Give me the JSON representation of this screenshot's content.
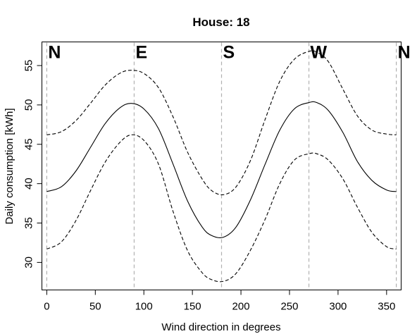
{
  "chart_data": {
    "type": "line",
    "title": "House:  18",
    "xlabel": "Wind direction in degrees",
    "ylabel": "Daily consumption [kWh]",
    "xlim": [
      -5,
      365
    ],
    "ylim": [
      26.5,
      58
    ],
    "xticks": [
      0,
      50,
      100,
      150,
      200,
      250,
      300,
      350
    ],
    "yticks": [
      30,
      35,
      40,
      45,
      50,
      55
    ],
    "grid": false,
    "vlines": [
      0,
      90,
      180,
      270,
      360
    ],
    "direction_labels": [
      {
        "label": "N",
        "x": 0
      },
      {
        "label": "E",
        "x": 90
      },
      {
        "label": "S",
        "x": 180
      },
      {
        "label": "W",
        "x": 270
      },
      {
        "label": "N",
        "x": 360
      }
    ],
    "x": [
      0,
      15,
      30,
      45,
      60,
      75,
      87,
      100,
      115,
      130,
      145,
      160,
      170,
      182,
      195,
      210,
      225,
      240,
      255,
      270,
      278,
      290,
      305,
      320,
      335,
      350,
      360
    ],
    "series": [
      {
        "style": "dashed",
        "values": [
          46.2,
          46.6,
          48.0,
          50.2,
          52.5,
          54.0,
          54.4,
          54.0,
          52.2,
          48.5,
          44.0,
          40.6,
          39.1,
          38.6,
          39.6,
          43.0,
          48.2,
          53.0,
          55.8,
          56.8,
          56.7,
          55.5,
          52.0,
          48.6,
          46.8,
          46.3,
          46.2
        ]
      },
      {
        "style": "solid",
        "values": [
          39.0,
          39.6,
          41.6,
          44.6,
          47.6,
          49.6,
          50.2,
          49.5,
          47.0,
          42.5,
          37.8,
          34.5,
          33.4,
          33.2,
          34.5,
          38.0,
          42.5,
          46.8,
          49.5,
          50.3,
          50.3,
          49.3,
          46.5,
          42.8,
          40.4,
          39.2,
          39.0
        ]
      },
      {
        "style": "dashed",
        "values": [
          31.7,
          32.6,
          35.3,
          39.1,
          42.7,
          45.2,
          46.2,
          45.5,
          42.5,
          36.5,
          31.5,
          28.7,
          27.8,
          27.6,
          28.6,
          31.6,
          35.5,
          40.0,
          43.0,
          43.8,
          43.8,
          43.0,
          40.6,
          37.0,
          33.8,
          32.0,
          31.7
        ]
      }
    ]
  }
}
